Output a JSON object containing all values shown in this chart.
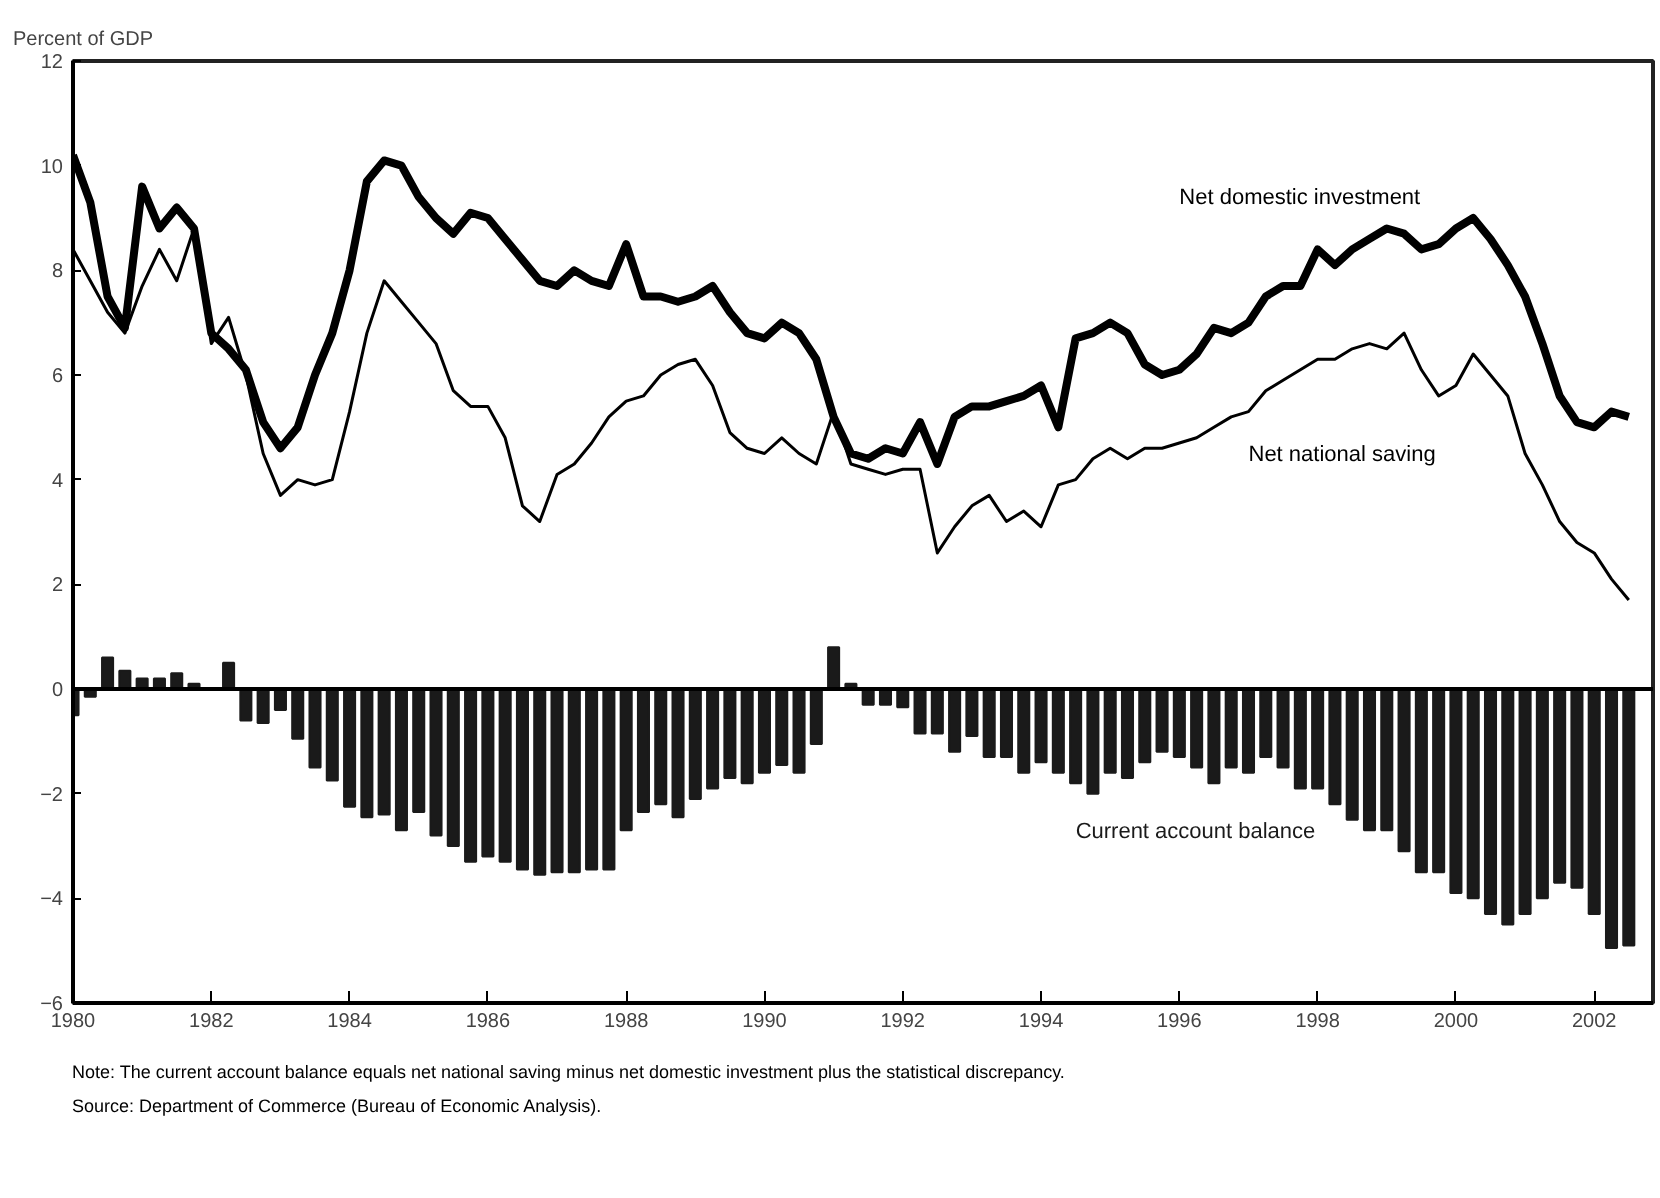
{
  "chart_data": {
    "type": "line",
    "ylabel": "Percent of GDP",
    "x": [
      1980.0,
      1980.25,
      1980.5,
      1980.75,
      1981.0,
      1981.25,
      1981.5,
      1981.75,
      1982.0,
      1982.25,
      1982.5,
      1982.75,
      1983.0,
      1983.25,
      1983.5,
      1983.75,
      1984.0,
      1984.25,
      1984.5,
      1984.75,
      1985.0,
      1985.25,
      1985.5,
      1985.75,
      1986.0,
      1986.25,
      1986.5,
      1986.75,
      1987.0,
      1987.25,
      1987.5,
      1987.75,
      1988.0,
      1988.25,
      1988.5,
      1988.75,
      1989.0,
      1989.25,
      1989.5,
      1989.75,
      1990.0,
      1990.25,
      1990.5,
      1990.75,
      1991.0,
      1991.25,
      1991.5,
      1991.75,
      1992.0,
      1992.25,
      1992.5,
      1992.75,
      1993.0,
      1993.25,
      1993.5,
      1993.75,
      1994.0,
      1994.25,
      1994.5,
      1994.75,
      1995.0,
      1995.25,
      1995.5,
      1995.75,
      1996.0,
      1996.25,
      1996.5,
      1996.75,
      1997.0,
      1997.25,
      1997.5,
      1997.75,
      1998.0,
      1998.25,
      1998.5,
      1998.75,
      1999.0,
      1999.25,
      1999.5,
      1999.75,
      2000.0,
      2000.25,
      2000.5,
      2000.75,
      2001.0,
      2001.25,
      2001.5,
      2001.75,
      2002.0,
      2002.25,
      2002.5
    ],
    "series": [
      {
        "name": "Current account balance",
        "type": "bar",
        "color": "#1a1a1a",
        "values": [
          -0.5,
          -0.15,
          0.6,
          0.35,
          0.2,
          0.2,
          0.3,
          0.1,
          null,
          0.5,
          -0.6,
          -0.65,
          -0.4,
          -0.95,
          -1.5,
          -1.75,
          -2.25,
          -2.45,
          -2.4,
          -2.7,
          -2.35,
          -2.8,
          -3.0,
          -3.3,
          -3.2,
          -3.3,
          -3.45,
          -3.55,
          -3.5,
          -3.5,
          -3.45,
          -3.45,
          -2.7,
          -2.35,
          -2.2,
          -2.45,
          -2.1,
          -1.9,
          -1.7,
          -1.8,
          -1.6,
          -1.45,
          -1.6,
          -1.05,
          0.8,
          0.1,
          -0.3,
          -0.3,
          -0.35,
          -0.85,
          -0.85,
          -1.2,
          -0.9,
          -1.3,
          -1.3,
          -1.6,
          -1.4,
          -1.6,
          -1.8,
          -2.0,
          -1.6,
          -1.7,
          -1.4,
          -1.2,
          -1.3,
          -1.5,
          -1.8,
          -1.5,
          -1.6,
          -1.3,
          -1.5,
          -1.9,
          -1.9,
          -2.2,
          -2.5,
          -2.7,
          -2.7,
          -3.1,
          -3.5,
          -3.5,
          -3.9,
          -4.0,
          -4.3,
          -4.5,
          -4.3,
          -4.0,
          -3.7,
          -3.8,
          -4.3,
          -4.95,
          -4.9
        ]
      },
      {
        "name": "Net domestic investment",
        "color": "#000000",
        "values": [
          10.2,
          9.3,
          7.5,
          6.9,
          9.6,
          8.8,
          9.2,
          8.8,
          6.8,
          6.5,
          6.1,
          5.1,
          4.6,
          5.0,
          6.0,
          6.8,
          8.0,
          9.7,
          10.1,
          10.0,
          9.4,
          9.0,
          8.7,
          9.1,
          9.0,
          8.6,
          8.2,
          7.8,
          7.7,
          8.0,
          7.8,
          7.7,
          8.5,
          7.5,
          7.5,
          7.4,
          7.5,
          7.7,
          7.2,
          6.8,
          6.7,
          7.0,
          6.8,
          6.3,
          5.2,
          4.5,
          4.4,
          4.6,
          4.5,
          5.1,
          4.3,
          5.2,
          5.4,
          5.4,
          5.5,
          5.6,
          5.8,
          5.0,
          6.7,
          6.8,
          7.0,
          6.8,
          6.2,
          6.0,
          6.1,
          6.4,
          6.9,
          6.8,
          7.0,
          7.5,
          7.7,
          7.7,
          8.4,
          8.1,
          8.4,
          8.6,
          8.8,
          8.7,
          8.4,
          8.5,
          8.8,
          9.0,
          8.6,
          8.1,
          7.5,
          6.6,
          5.6,
          5.1,
          5.0,
          5.3,
          5.2
        ]
      },
      {
        "name": "Net national saving",
        "color": "#000000",
        "values": [
          8.4,
          7.8,
          7.2,
          6.8,
          7.7,
          8.4,
          7.8,
          8.8,
          6.6,
          7.1,
          6.0,
          4.5,
          3.7,
          4.0,
          3.9,
          4.0,
          5.3,
          6.8,
          7.8,
          7.4,
          7.0,
          6.6,
          5.7,
          5.4,
          5.4,
          4.8,
          3.5,
          3.2,
          4.1,
          4.3,
          4.7,
          5.2,
          5.5,
          5.6,
          6.0,
          6.2,
          6.3,
          5.8,
          4.9,
          4.6,
          4.5,
          4.8,
          4.5,
          4.3,
          5.3,
          4.3,
          4.2,
          4.1,
          4.2,
          4.2,
          2.6,
          3.1,
          3.5,
          3.7,
          3.2,
          3.4,
          3.1,
          3.9,
          4.0,
          4.4,
          4.6,
          4.4,
          4.6,
          4.6,
          4.7,
          4.8,
          5.0,
          5.2,
          5.3,
          5.7,
          5.9,
          6.1,
          6.3,
          6.3,
          6.5,
          6.6,
          6.5,
          6.8,
          6.1,
          5.6,
          5.8,
          6.4,
          6.0,
          5.6,
          4.5,
          3.9,
          3.2,
          2.8,
          2.6,
          2.1,
          1.7
        ]
      }
    ],
    "xlim": [
      1980,
      2002.85
    ],
    "xticks": [
      1980,
      1982,
      1984,
      1986,
      1988,
      1990,
      1992,
      1994,
      1996,
      1998,
      2000,
      2002
    ],
    "ylim": [
      -6,
      12
    ],
    "yticks": [
      -6,
      -4,
      -2,
      0,
      2,
      4,
      6,
      8,
      10,
      12
    ],
    "annotations": [
      "Note: The current account balance equals net national saving minus net domestic investment plus the statistical discrepancy.",
      "Source: Department of Commerce (Bureau of Economic Analysis)."
    ]
  }
}
